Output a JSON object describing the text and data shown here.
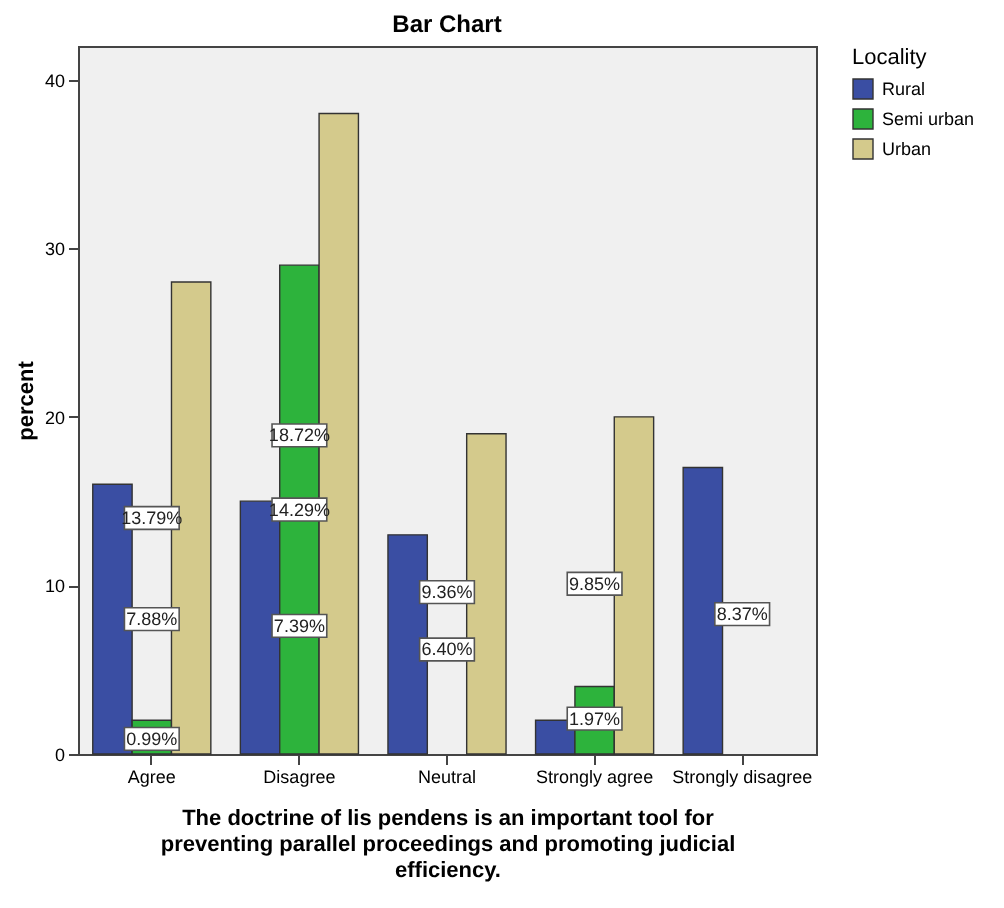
{
  "chart_data": {
    "type": "bar",
    "title": "Bar Chart",
    "xlabel": "The doctrine of lis pendens is an important tool for preventing parallel proceedings and promoting judicial efficiency.",
    "ylabel": "percent",
    "legend_title": "Locality",
    "legend": "right",
    "categories": [
      "Agree",
      "Disagree",
      "Neutral",
      "Strongly agree",
      "Strongly disagree"
    ],
    "series": [
      {
        "name": "Rural",
        "color": "#3a4ea3",
        "values": [
          16,
          15,
          13,
          2,
          17
        ]
      },
      {
        "name": "Semi urban",
        "color": "#2db33c",
        "values": [
          2,
          29,
          null,
          4,
          null
        ]
      },
      {
        "name": "Urban",
        "color": "#d4ca8c",
        "values": [
          28,
          38,
          19,
          20,
          null
        ]
      }
    ],
    "annotations": [
      {
        "text": "7.88%",
        "x": "Agree",
        "y": 8.0
      },
      {
        "text": "0.99%",
        "x": "Agree",
        "y": 0.9
      },
      {
        "text": "13.79%",
        "x": "Agree",
        "y": 14.0
      },
      {
        "text": "7.39%",
        "x": "Disagree",
        "y": 7.6
      },
      {
        "text": "14.29%",
        "x": "Disagree",
        "y": 14.5
      },
      {
        "text": "18.72%",
        "x": "Disagree",
        "y": 18.9
      },
      {
        "text": "6.40%",
        "x": "Neutral",
        "y": 6.2
      },
      {
        "text": "9.36%",
        "x": "Neutral",
        "y": 9.6
      },
      {
        "text": "1.97%",
        "x": "Strongly agree",
        "y": 2.1
      },
      {
        "text": "9.85%",
        "x": "Strongly agree",
        "y": 10.1
      },
      {
        "text": "8.37%",
        "x": "Strongly disagree",
        "y": 8.3
      }
    ],
    "ylim": [
      0,
      42
    ],
    "yticks": [
      0,
      10,
      20,
      30,
      40
    ]
  }
}
